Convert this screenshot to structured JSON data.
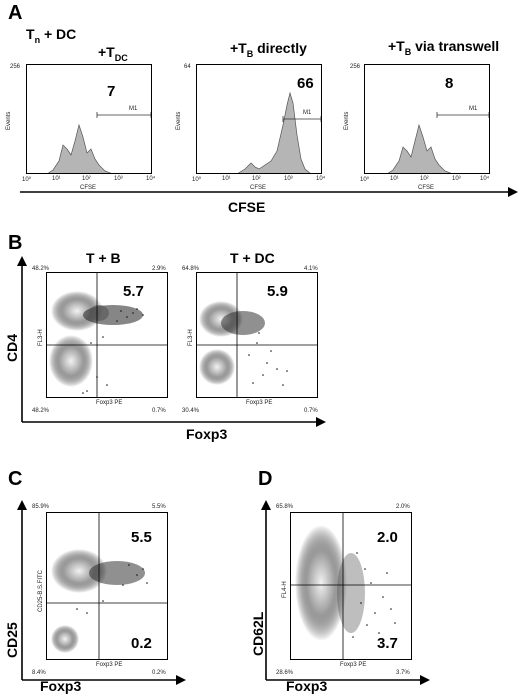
{
  "panels": {
    "A": {
      "letter": "A",
      "title_left": "Tn + DC",
      "title_left_main": "T",
      "title_left_sub": "n",
      "title_left_rest": " + DC",
      "hist1": {
        "title_main": "+T",
        "title_sub": "DC",
        "value": "7",
        "ymax": "256",
        "gate": "M1",
        "xlabel": "CFSE",
        "ylabel": "Events"
      },
      "hist2": {
        "title_main": "+T",
        "title_sub": "B",
        "title_rest": " directly",
        "value": "66",
        "ymax": "64",
        "gate": "M1",
        "xlabel": "CFSE",
        "ylabel": "Events"
      },
      "hist3": {
        "title_main": "+T",
        "title_sub": "B",
        "title_rest": " via transwell",
        "value": "8",
        "ymax": "256",
        "gate": "M1",
        "xlabel": "CFSE",
        "ylabel": "Events"
      },
      "axis_label": "CFSE",
      "xticks": [
        "10⁰",
        "10¹",
        "10²",
        "10³",
        "10⁴"
      ]
    },
    "B": {
      "letter": "B",
      "plot1": {
        "title": "T + B",
        "ul": "48.2%",
        "ur": "2.9%",
        "ll": "48.2%",
        "lr": "0.7%",
        "value": "5.7",
        "xlabel": "Foxp3 PE",
        "ylabel": "FL3-H"
      },
      "plot2": {
        "title": "T + DC",
        "ul": "64.8%",
        "ur": "4.1%",
        "ll": "30.4%",
        "lr": "0.7%",
        "value": "5.9",
        "xlabel": "Foxp3 PE",
        "ylabel": "FL3-H"
      },
      "yaxis": "CD4",
      "xaxis": "Foxp3"
    },
    "C": {
      "letter": "C",
      "ul": "85.9%",
      "ur": "5.5%",
      "ll": "8.4%",
      "lr": "0.2%",
      "value_upper": "5.5",
      "value_lower": "0.2",
      "xlabel": "Foxp3 PE",
      "ylabel": "CD25-B.S.FITC",
      "yaxis": "CD25",
      "xaxis": "Foxp3"
    },
    "D": {
      "letter": "D",
      "ul": "65.8%",
      "ur": "2.0%",
      "ll": "28.6%",
      "lr": "3.7%",
      "value_upper": "2.0",
      "value_lower": "3.7",
      "xlabel": "Foxp3 PE",
      "ylabel": "FL4-H",
      "yaxis": "CD62L",
      "xaxis": "Foxp3"
    }
  },
  "ticks_small": [
    "10⁰",
    "10¹",
    "10²",
    "10³",
    "10⁴"
  ]
}
